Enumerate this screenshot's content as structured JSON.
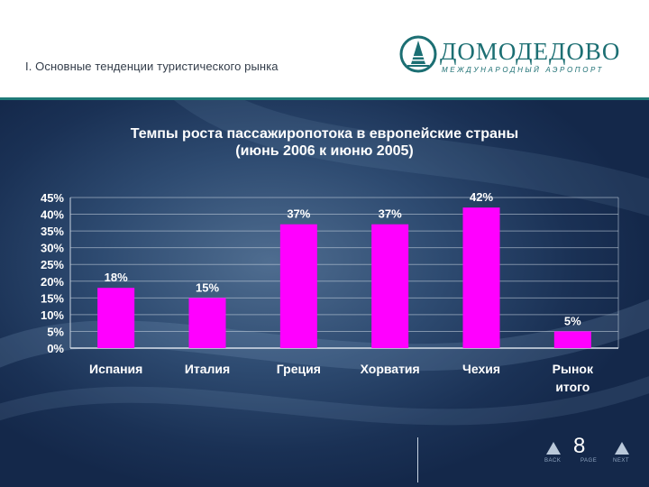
{
  "header": {
    "section_title": "I. Основные тенденции туристического рынка",
    "logo_name": "ДОМОДЕДОВО",
    "logo_sub": "МЕЖДУНАРОДНЫЙ АЭРОПОРТ"
  },
  "colors": {
    "bar": "#ff00ff",
    "accent": "#1f7a78"
  },
  "chart_data": {
    "type": "bar",
    "title_line1": "Темпы роста пассажиропотока в европейские страны",
    "title_line2": "(июнь 2006 к июню 2005)",
    "categories": [
      [
        "Испания"
      ],
      [
        "Италия"
      ],
      [
        "Греция"
      ],
      [
        "Хорватия"
      ],
      [
        "Чехия"
      ],
      [
        "Рынок",
        "итого"
      ]
    ],
    "values": [
      18,
      15,
      37,
      37,
      42,
      5
    ],
    "data_labels": [
      "18%",
      "15%",
      "37%",
      "37%",
      "42%",
      "5%"
    ],
    "ylim": [
      0,
      45
    ],
    "yticks": [
      0,
      5,
      10,
      15,
      20,
      25,
      30,
      35,
      40,
      45
    ],
    "ytick_labels": [
      "0%",
      "5%",
      "10%",
      "15%",
      "20%",
      "25%",
      "30%",
      "35%",
      "40%",
      "45%"
    ],
    "grid": true,
    "legend": "none"
  },
  "footer": {
    "page_number": "8",
    "back_label": "BACK",
    "page_label": "PAGE",
    "next_label": "NEXT"
  }
}
